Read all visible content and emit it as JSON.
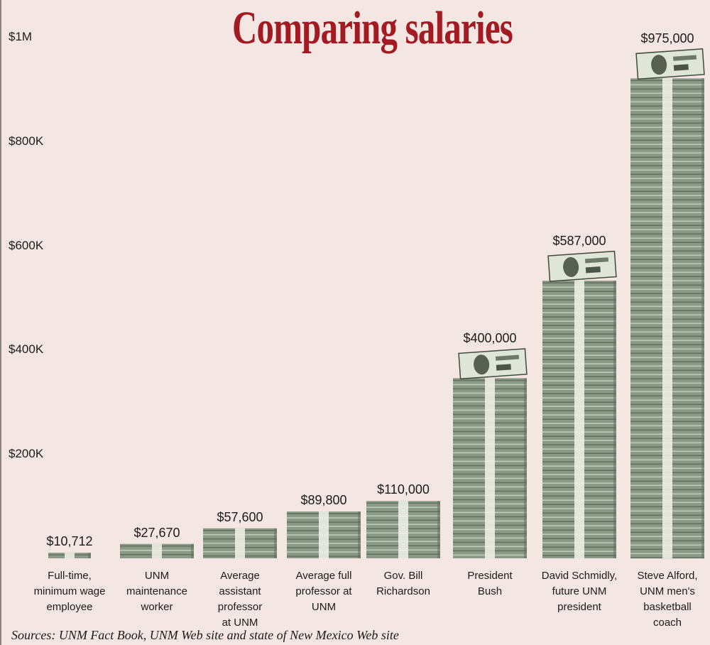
{
  "chart_data": {
    "type": "bar",
    "title": "Comparing salaries",
    "xlabel": "",
    "ylabel": "",
    "ylim": [
      0,
      1000000
    ],
    "y_ticks": [
      {
        "value": 1000000,
        "label": "$1M"
      },
      {
        "value": 800000,
        "label": "$800K"
      },
      {
        "value": 600000,
        "label": "$600K"
      },
      {
        "value": 400000,
        "label": "$400K"
      },
      {
        "value": 200000,
        "label": "$200K"
      }
    ],
    "categories": [
      [
        "Full-time,",
        "minimum wage",
        "employee"
      ],
      [
        "UNM",
        "maintenance",
        "worker"
      ],
      [
        "Average",
        "assistant",
        "professor",
        "at UNM"
      ],
      [
        "Average full",
        "professor at",
        "UNM"
      ],
      [
        "Gov. Bill",
        "Richardson"
      ],
      [
        "President",
        "Bush"
      ],
      [
        "David Schmidly,",
        "future UNM",
        "president"
      ],
      [
        "Steve Alford,",
        "UNM men's",
        "basketball",
        "coach"
      ]
    ],
    "values": [
      10712,
      27670,
      57600,
      89800,
      110000,
      400000,
      587000,
      975000
    ],
    "value_labels": [
      "$10,712",
      "$27,670",
      "$57,600",
      "$89,800",
      "$110,000",
      "$400,000",
      "$587,000",
      "$975,000"
    ],
    "bar_style": "stacks of $100 bills",
    "source": "Sources: UNM Fact Book, UNM Web site and state of New Mexico Web site"
  },
  "colors": {
    "background": "#f4e6e2",
    "title": "#a31b22",
    "bill": "#8a9a87",
    "bill_dark": "#5d6b5b",
    "bill_light": "#c8d2c3",
    "band": "#eceee6"
  }
}
